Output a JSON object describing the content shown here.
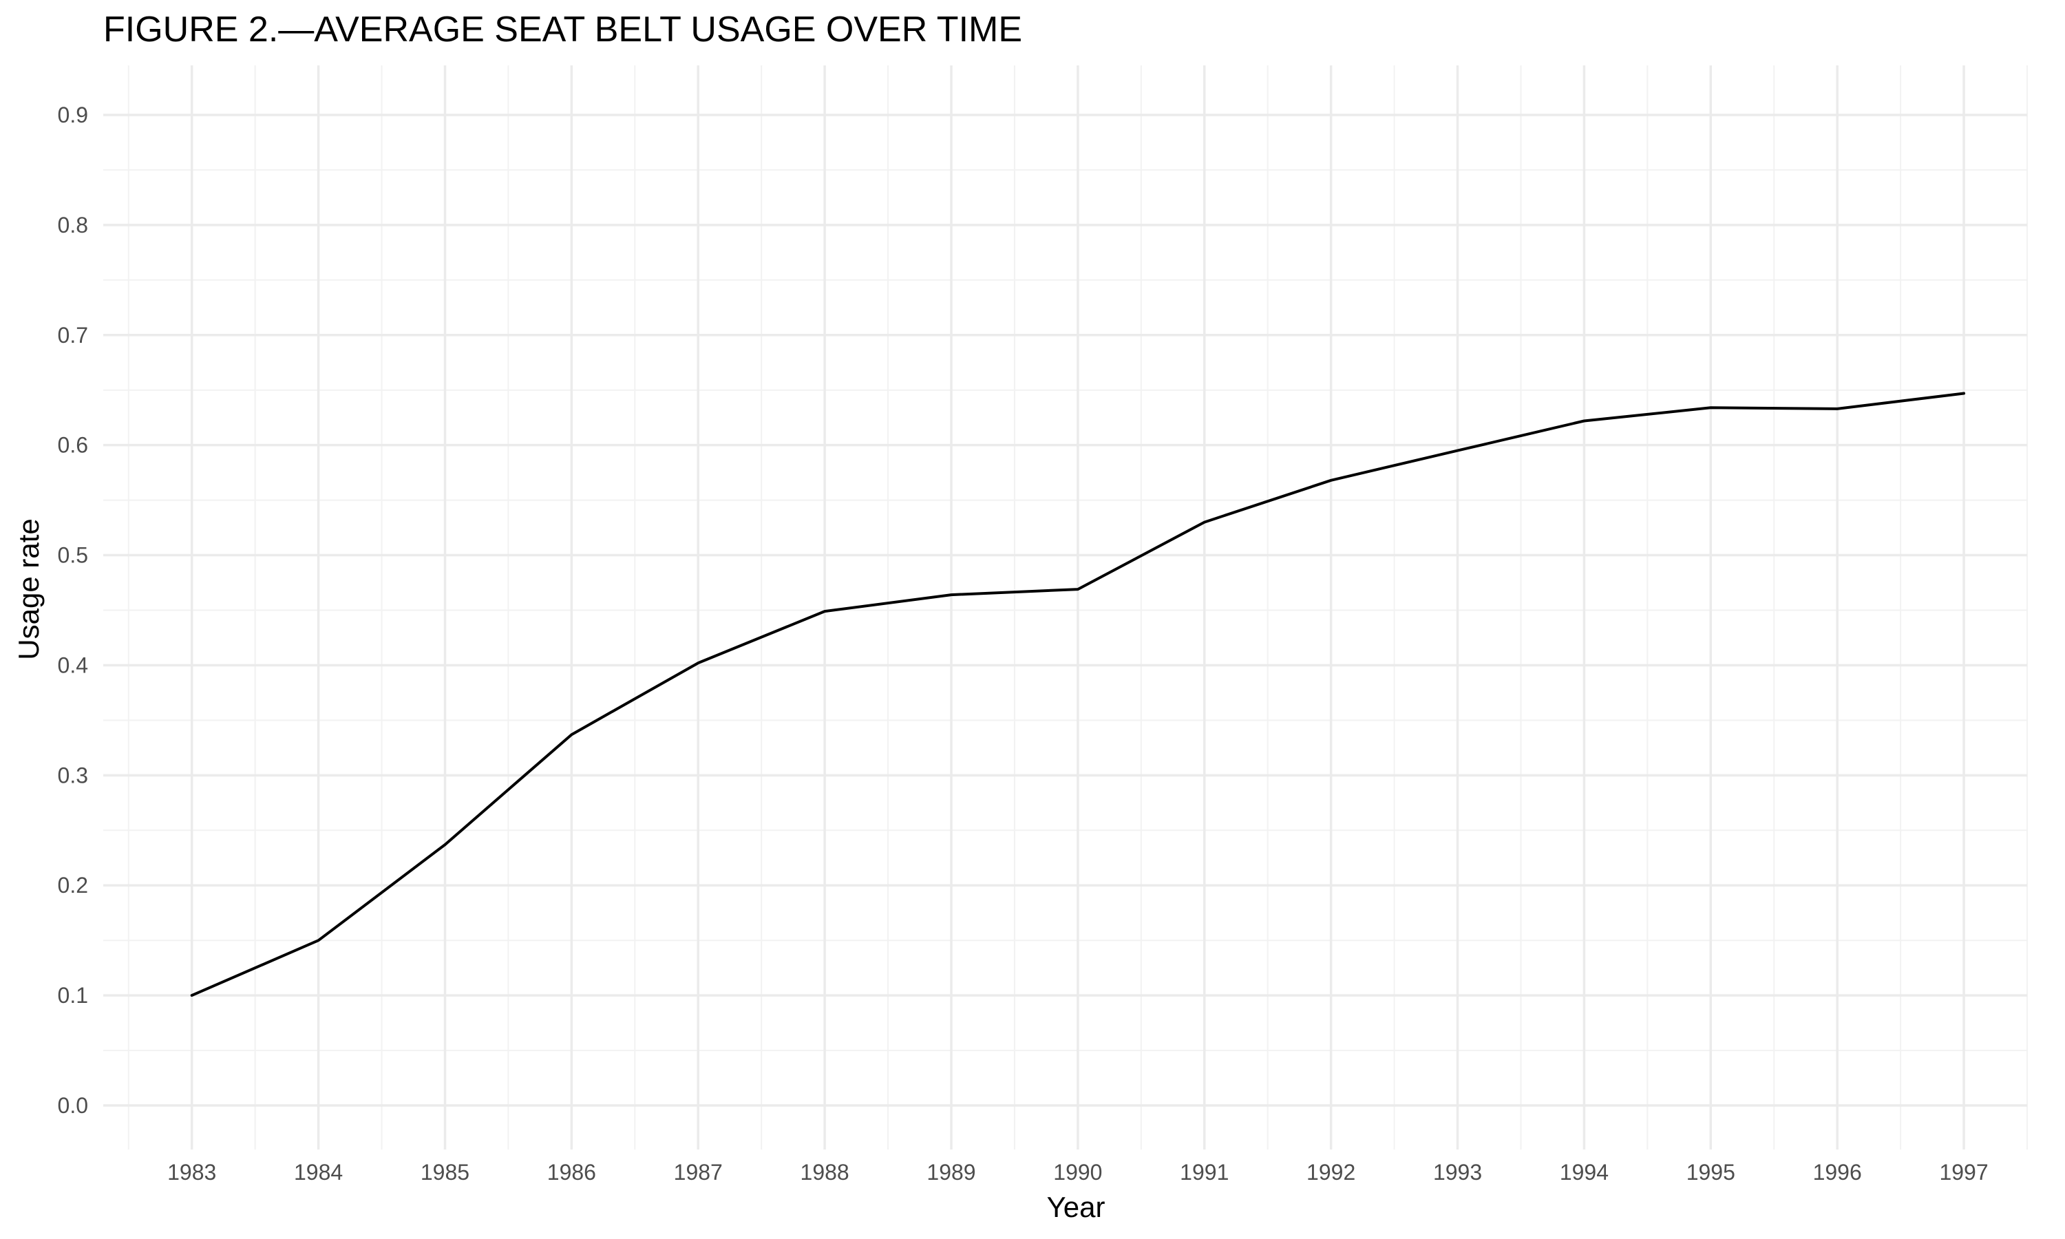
{
  "chart_data": {
    "type": "line",
    "title": "FIGURE 2.—AVERAGE SEAT BELT USAGE OVER TIME",
    "xlabel": "Year",
    "ylabel": "Usage rate",
    "x": [
      1983,
      1984,
      1985,
      1986,
      1987,
      1988,
      1989,
      1990,
      1991,
      1992,
      1993,
      1994,
      1995,
      1996,
      1997
    ],
    "series": [
      {
        "values": [
          0.1,
          0.15,
          0.237,
          0.337,
          0.402,
          0.449,
          0.464,
          0.469,
          0.53,
          0.568,
          0.595,
          0.622,
          0.634,
          0.633,
          0.647
        ],
        "color": "#000000"
      }
    ],
    "xlim": [
      1982.3,
      1997.5
    ],
    "ylim": [
      -0.04,
      0.945
    ],
    "xticks": [
      "1983",
      "1984",
      "1985",
      "1986",
      "1987",
      "1988",
      "1989",
      "1990",
      "1991",
      "1992",
      "1993",
      "1994",
      "1995",
      "1996",
      "1997"
    ],
    "yticks": [
      "0.0",
      "0.1",
      "0.2",
      "0.3",
      "0.4",
      "0.5",
      "0.6",
      "0.7",
      "0.8",
      "0.9"
    ],
    "grid": true,
    "legend": "none"
  }
}
